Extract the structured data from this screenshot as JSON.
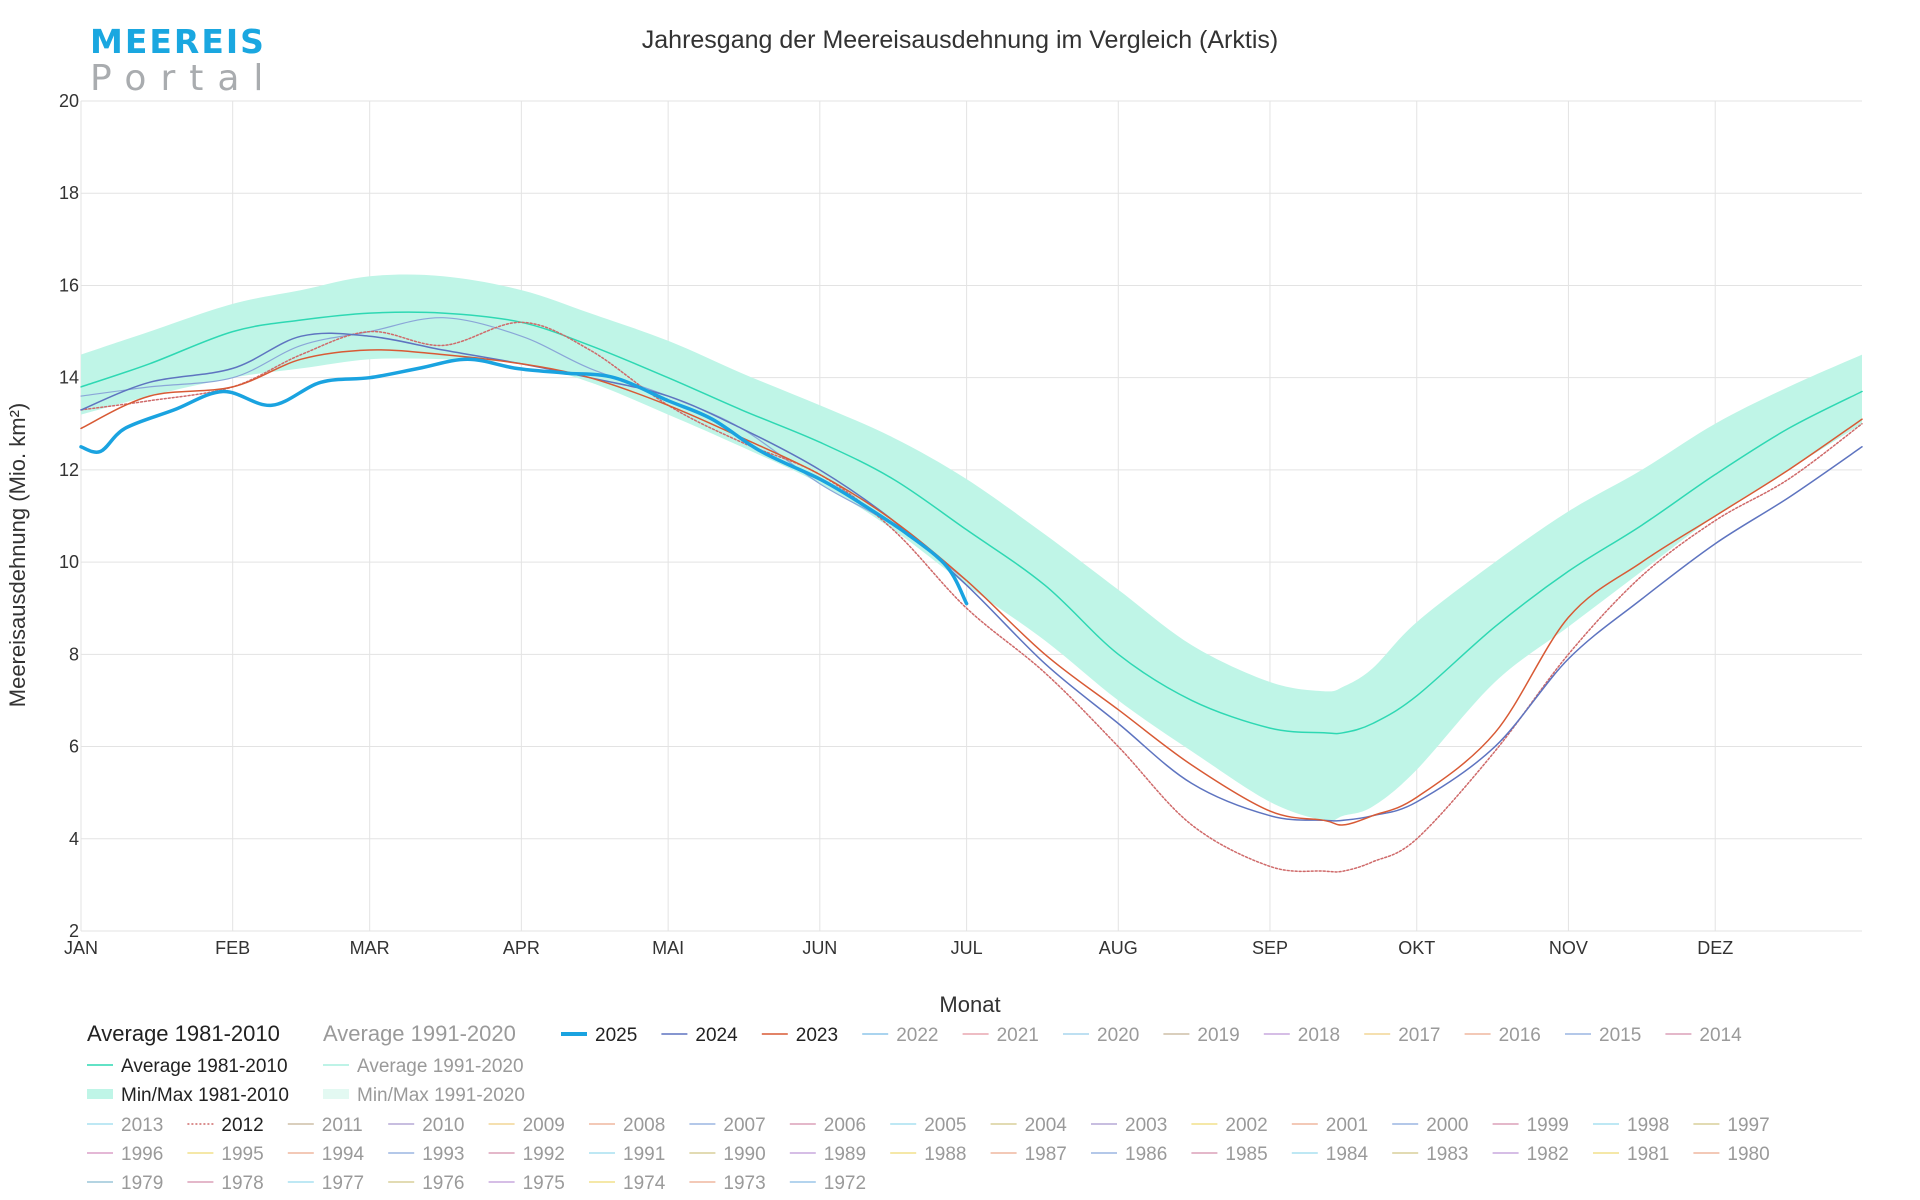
{
  "logo": {
    "line1": "MEEREIS",
    "line2": "Portal"
  },
  "chart_data": {
    "type": "line",
    "title": "Jahresgang der Meereisausdehnung im Vergleich (Arktis)",
    "xlabel": "Monat",
    "ylabel": "Meereisausdehnung (Mio. km²)",
    "ylim": [
      2,
      20
    ],
    "yticks": [
      2,
      4,
      6,
      8,
      10,
      12,
      14,
      16,
      18,
      20
    ],
    "xlim": [
      1,
      365
    ],
    "months": [
      {
        "label": "JAN",
        "day": 1
      },
      {
        "label": "FEB",
        "day": 32
      },
      {
        "label": "MAR",
        "day": 60
      },
      {
        "label": "APR",
        "day": 91
      },
      {
        "label": "MAI",
        "day": 121
      },
      {
        "label": "JUN",
        "day": 152
      },
      {
        "label": "JUL",
        "day": 182
      },
      {
        "label": "AUG",
        "day": 213
      },
      {
        "label": "SEP",
        "day": 244
      },
      {
        "label": "OKT",
        "day": 274
      },
      {
        "label": "NOV",
        "day": 305
      },
      {
        "label": "DEZ",
        "day": 335
      }
    ],
    "grid": true,
    "colors": {
      "avg1981": "#2ed8b3",
      "band1981": "#bff5e7",
      "avg1991": "#a9efdf",
      "y2025": "#1aa3e0",
      "y2024": "#5e74c0",
      "y2023": "#d85a35",
      "y2012": "#cf6a6a",
      "y2020": "#8aa6d8"
    },
    "band_1981_2010": {
      "x": [
        1,
        15,
        32,
        46,
        60,
        75,
        91,
        105,
        121,
        136,
        152,
        167,
        182,
        198,
        213,
        228,
        244,
        255,
        259,
        265,
        274,
        290,
        305,
        320,
        335,
        350,
        365
      ],
      "min": [
        13.2,
        13.6,
        14.0,
        14.2,
        14.4,
        14.4,
        14.3,
        13.9,
        13.2,
        12.5,
        11.7,
        10.7,
        9.5,
        8.3,
        7.0,
        5.9,
        4.8,
        4.4,
        4.5,
        4.7,
        5.5,
        7.4,
        8.6,
        9.8,
        11.0,
        12.0,
        13.0
      ],
      "max": [
        14.5,
        15.0,
        15.6,
        15.9,
        16.2,
        16.2,
        15.9,
        15.4,
        14.8,
        14.1,
        13.4,
        12.7,
        11.8,
        10.6,
        9.4,
        8.2,
        7.4,
        7.2,
        7.3,
        7.7,
        8.7,
        10.0,
        11.1,
        12.0,
        13.0,
        13.8,
        14.5
      ]
    },
    "series": [
      {
        "name": "Average 1981-2010",
        "kind": "avg1981",
        "x": [
          1,
          15,
          32,
          46,
          60,
          75,
          91,
          105,
          121,
          136,
          152,
          167,
          182,
          198,
          213,
          228,
          244,
          255,
          259,
          265,
          274,
          290,
          305,
          320,
          335,
          350,
          365
        ],
        "values": [
          13.8,
          14.3,
          15.0,
          15.25,
          15.4,
          15.4,
          15.2,
          14.7,
          14.0,
          13.3,
          12.6,
          11.8,
          10.7,
          9.5,
          8.0,
          7.0,
          6.4,
          6.3,
          6.3,
          6.5,
          7.1,
          8.6,
          9.8,
          10.8,
          11.9,
          12.9,
          13.7
        ]
      },
      {
        "name": "2025",
        "kind": "y2025",
        "x": [
          1,
          5,
          10,
          20,
          30,
          40,
          50,
          60,
          70,
          80,
          90,
          100,
          110,
          121,
          130,
          140,
          152,
          160,
          170,
          178,
          182
        ],
        "values": [
          12.5,
          12.4,
          12.9,
          13.3,
          13.7,
          13.4,
          13.9,
          14.0,
          14.2,
          14.4,
          14.2,
          14.1,
          14.0,
          13.5,
          13.1,
          12.4,
          11.8,
          11.3,
          10.6,
          9.9,
          9.1
        ]
      },
      {
        "name": "2024",
        "kind": "y2024",
        "x": [
          1,
          15,
          32,
          46,
          60,
          75,
          91,
          105,
          121,
          136,
          152,
          167,
          182,
          198,
          213,
          228,
          244,
          255,
          259,
          265,
          274,
          290,
          305,
          320,
          335,
          350,
          365
        ],
        "values": [
          13.3,
          13.9,
          14.2,
          14.9,
          14.9,
          14.6,
          14.3,
          14.0,
          13.6,
          12.9,
          12.0,
          10.9,
          9.5,
          7.8,
          6.5,
          5.2,
          4.5,
          4.4,
          4.4,
          4.5,
          4.8,
          6.0,
          7.9,
          9.2,
          10.4,
          11.4,
          12.5
        ]
      },
      {
        "name": "2023",
        "kind": "y2023",
        "x": [
          1,
          15,
          32,
          46,
          60,
          75,
          91,
          105,
          121,
          136,
          152,
          167,
          182,
          198,
          213,
          228,
          244,
          255,
          259,
          265,
          274,
          290,
          305,
          320,
          335,
          350,
          365
        ],
        "values": [
          12.9,
          13.6,
          13.8,
          14.4,
          14.6,
          14.5,
          14.3,
          14.0,
          13.4,
          12.7,
          11.9,
          10.9,
          9.6,
          8.0,
          6.8,
          5.6,
          4.6,
          4.4,
          4.3,
          4.5,
          4.9,
          6.3,
          8.8,
          10.0,
          11.0,
          12.0,
          13.1
        ]
      },
      {
        "name": "2012",
        "kind": "y2012",
        "x": [
          1,
          15,
          32,
          46,
          60,
          75,
          91,
          105,
          121,
          136,
          152,
          167,
          182,
          198,
          213,
          228,
          244,
          255,
          259,
          265,
          274,
          290,
          305,
          320,
          335,
          350,
          365
        ],
        "values": [
          13.3,
          13.5,
          13.8,
          14.5,
          15.0,
          14.7,
          15.2,
          14.6,
          13.4,
          12.6,
          11.9,
          10.7,
          9.0,
          7.6,
          6.0,
          4.3,
          3.4,
          3.3,
          3.3,
          3.5,
          4.0,
          5.9,
          8.0,
          9.7,
          10.9,
          11.8,
          13.0
        ]
      },
      {
        "name": "2020",
        "kind": "y2020",
        "x": [
          1,
          15,
          32,
          46,
          60,
          75,
          91,
          105,
          121,
          136,
          152,
          167,
          182
        ],
        "values": [
          13.6,
          13.8,
          14.0,
          14.7,
          15.0,
          15.3,
          14.9,
          14.2,
          13.6,
          12.9,
          11.7,
          10.8,
          9.6
        ]
      }
    ],
    "legend": {
      "headers": [
        {
          "label": "Average 1981-2010",
          "active": true
        },
        {
          "label": "Average 1991-2020",
          "active": false
        }
      ],
      "group_rows": [
        [
          {
            "label": "Average 1981-2010",
            "color": "#2ed8b3",
            "style": "line",
            "active": true
          },
          {
            "label": "Average 1991-2020",
            "color": "#a9efdf",
            "style": "line",
            "active": false
          }
        ],
        [
          {
            "label": "Min/Max 1981-2010",
            "color": "#bff5e7",
            "style": "band",
            "active": true
          },
          {
            "label": "Min/Max 1991-2020",
            "color": "#e3f9f2",
            "style": "band",
            "active": false
          }
        ]
      ],
      "years_row1": [
        {
          "label": "2025",
          "color": "#1aa3e0",
          "style": "bold",
          "active": true
        },
        {
          "label": "2024",
          "color": "#5e74c0",
          "style": "line",
          "active": true
        },
        {
          "label": "2023",
          "color": "#d85a35",
          "style": "line",
          "active": true
        },
        {
          "label": "2022",
          "color": "#8ec5ea",
          "style": "line",
          "active": false
        },
        {
          "label": "2021",
          "color": "#e8a7b0",
          "style": "line",
          "active": false
        },
        {
          "label": "2020",
          "color": "#a9d6ee",
          "style": "line",
          "active": false
        },
        {
          "label": "2019",
          "color": "#cdbfa7",
          "style": "line",
          "active": false
        },
        {
          "label": "2018",
          "color": "#c8a9de",
          "style": "line",
          "active": false
        },
        {
          "label": "2017",
          "color": "#f2d596",
          "style": "line",
          "active": false
        },
        {
          "label": "2016",
          "color": "#efb79f",
          "style": "line",
          "active": false
        },
        {
          "label": "2015",
          "color": "#9bb5e2",
          "style": "line",
          "active": false
        },
        {
          "label": "2014",
          "color": "#dba0b9",
          "style": "line",
          "active": false
        }
      ],
      "year_rows": [
        [
          {
            "label": "2013",
            "color": "#a9e0f0",
            "style": "line",
            "active": false
          },
          {
            "label": "2012",
            "color": "#cf6a6a",
            "style": "dotted",
            "active": true
          },
          {
            "label": "2011",
            "color": "#cdbfa7",
            "style": "line",
            "active": false
          },
          {
            "label": "2010",
            "color": "#b6a9d6",
            "style": "line",
            "active": false
          },
          {
            "label": "2009",
            "color": "#f2d596",
            "style": "line",
            "active": false
          },
          {
            "label": "2008",
            "color": "#efb79f",
            "style": "line",
            "active": false
          },
          {
            "label": "2007",
            "color": "#9bb5e2",
            "style": "line",
            "active": false
          },
          {
            "label": "2006",
            "color": "#dba0b9",
            "style": "line",
            "active": false
          },
          {
            "label": "2005",
            "color": "#a9e0f0",
            "style": "line",
            "active": false
          },
          {
            "label": "2004",
            "color": "#d8cf9a",
            "style": "line",
            "active": false
          },
          {
            "label": "2003",
            "color": "#b6a9d6",
            "style": "line",
            "active": false
          },
          {
            "label": "2002",
            "color": "#f2e08c",
            "style": "line",
            "active": false
          },
          {
            "label": "2001",
            "color": "#efb79f",
            "style": "line",
            "active": false
          },
          {
            "label": "2000",
            "color": "#9bb5e2",
            "style": "line",
            "active": false
          },
          {
            "label": "1999",
            "color": "#dba0b9",
            "style": "line",
            "active": false
          },
          {
            "label": "1998",
            "color": "#a9e0f0",
            "style": "line",
            "active": false
          },
          {
            "label": "1997",
            "color": "#d8cf9a",
            "style": "line",
            "active": false
          }
        ],
        [
          {
            "label": "1996",
            "color": "#dba0c9",
            "style": "line",
            "active": false
          },
          {
            "label": "1995",
            "color": "#f2e08c",
            "style": "line",
            "active": false
          },
          {
            "label": "1994",
            "color": "#efb79f",
            "style": "line",
            "active": false
          },
          {
            "label": "1993",
            "color": "#9bb5e2",
            "style": "line",
            "active": false
          },
          {
            "label": "1992",
            "color": "#dba0b9",
            "style": "line",
            "active": false
          },
          {
            "label": "1991",
            "color": "#a9e0f0",
            "style": "line",
            "active": false
          },
          {
            "label": "1990",
            "color": "#d8cf9a",
            "style": "line",
            "active": false
          },
          {
            "label": "1989",
            "color": "#c8a9de",
            "style": "line",
            "active": false
          },
          {
            "label": "1988",
            "color": "#f2e08c",
            "style": "line",
            "active": false
          },
          {
            "label": "1987",
            "color": "#efb79f",
            "style": "line",
            "active": false
          },
          {
            "label": "1986",
            "color": "#9bb5e2",
            "style": "line",
            "active": false
          },
          {
            "label": "1985",
            "color": "#dba0b9",
            "style": "line",
            "active": false
          },
          {
            "label": "1984",
            "color": "#a9e0f0",
            "style": "line",
            "active": false
          },
          {
            "label": "1983",
            "color": "#d8cf9a",
            "style": "line",
            "active": false
          },
          {
            "label": "1982",
            "color": "#c8a9de",
            "style": "line",
            "active": false
          },
          {
            "label": "1981",
            "color": "#f2e08c",
            "style": "line",
            "active": false
          },
          {
            "label": "1980",
            "color": "#efb79f",
            "style": "line",
            "active": false
          }
        ],
        [
          {
            "label": "1979",
            "color": "#9bc5d8",
            "style": "line",
            "active": false
          },
          {
            "label": "1978",
            "color": "#dba0b9",
            "style": "line",
            "active": false
          },
          {
            "label": "1977",
            "color": "#a9e0f0",
            "style": "line",
            "active": false
          },
          {
            "label": "1976",
            "color": "#d8cf9a",
            "style": "line",
            "active": false
          },
          {
            "label": "1975",
            "color": "#c8a9de",
            "style": "line",
            "active": false
          },
          {
            "label": "1974",
            "color": "#f2e08c",
            "style": "line",
            "active": false
          },
          {
            "label": "1973",
            "color": "#efb79f",
            "style": "line",
            "active": false
          },
          {
            "label": "1972",
            "color": "#9bc5e8",
            "style": "line",
            "active": false
          }
        ]
      ]
    }
  }
}
